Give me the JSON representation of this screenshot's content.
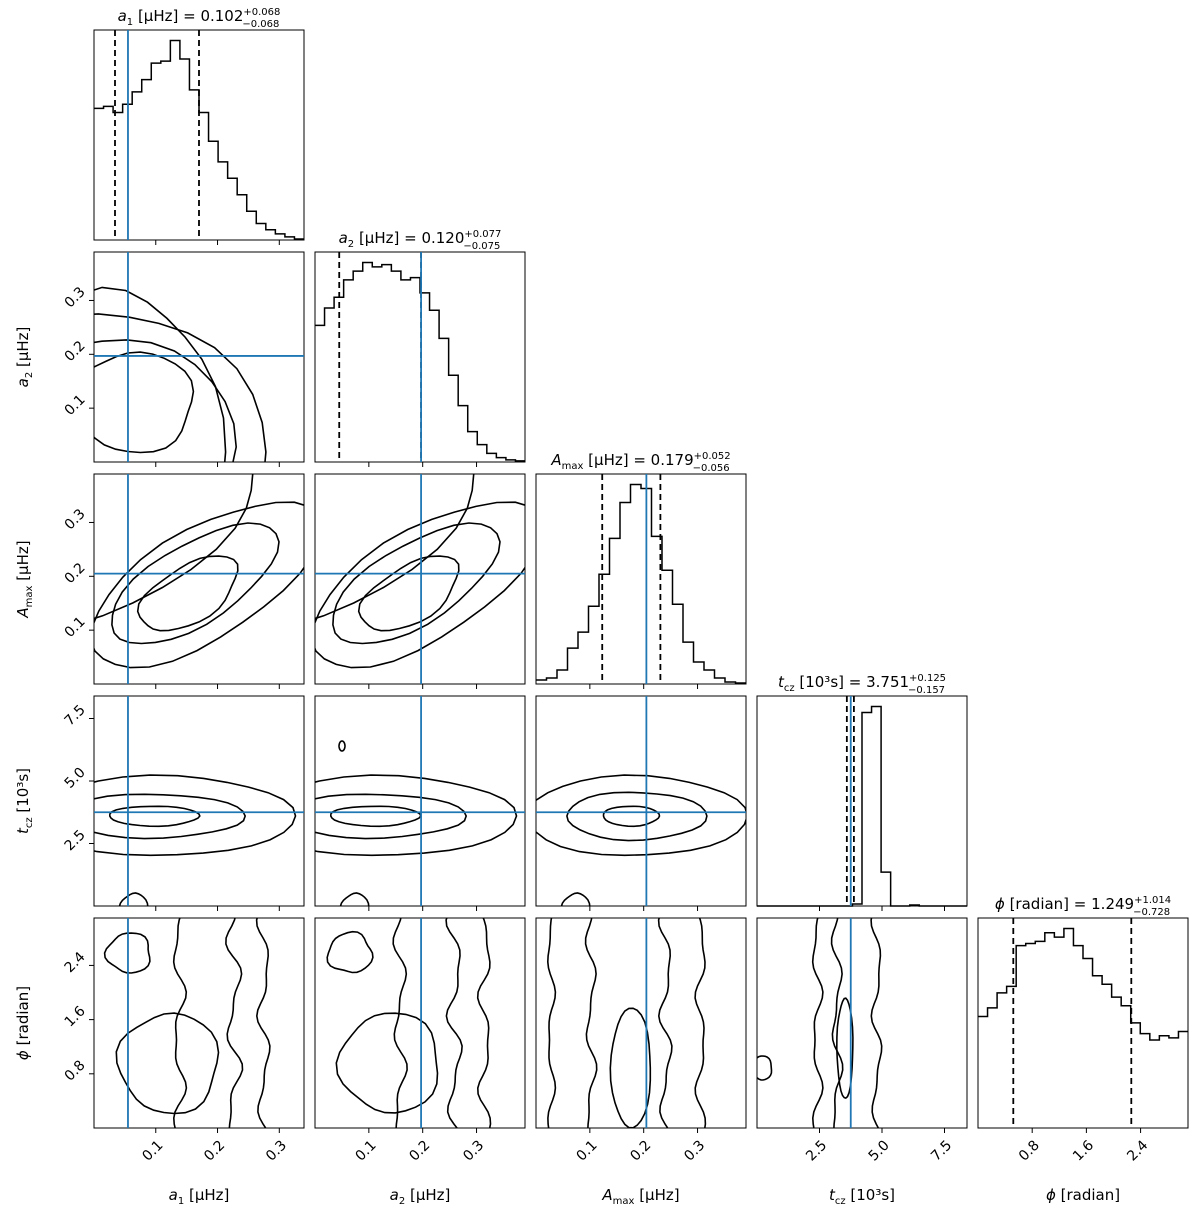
{
  "chart_data": {
    "type": "corner",
    "parameters": [
      {
        "key": "a1",
        "axis_label_main": "a",
        "axis_label_sub": "1",
        "axis_label_unit": " [μHz]",
        "title_value": "0.102",
        "title_plus": "+0.068",
        "title_minus": "−0.068",
        "range": [
          0.0,
          0.34
        ],
        "ticks": [
          0.1,
          0.2,
          0.3
        ],
        "tick_labels": [
          "0.1",
          "0.2",
          "0.3"
        ],
        "truth": 0.055,
        "quantiles": [
          0.034,
          0.102,
          0.17
        ]
      },
      {
        "key": "a2",
        "axis_label_main": "a",
        "axis_label_sub": "2",
        "axis_label_unit": " [μHz]",
        "title_value": "0.120",
        "title_plus": "+0.077",
        "title_minus": "−0.075",
        "range": [
          0.0,
          0.39
        ],
        "ticks": [
          0.1,
          0.2,
          0.3
        ],
        "tick_labels": [
          "0.1",
          "0.2",
          "0.3"
        ],
        "truth": 0.197,
        "quantiles": [
          0.045,
          0.12,
          0.197
        ]
      },
      {
        "key": "Amax",
        "axis_label_main": "A",
        "axis_label_sub": "max",
        "axis_label_unit": " [μHz]",
        "title_value": "0.179",
        "title_plus": "+0.052",
        "title_minus": "−0.056",
        "range": [
          0.0,
          0.39
        ],
        "ticks": [
          0.1,
          0.2,
          0.3
        ],
        "tick_labels": [
          "0.1",
          "0.2",
          "0.3"
        ],
        "truth": 0.205,
        "quantiles": [
          0.123,
          0.179,
          0.231
        ]
      },
      {
        "key": "tcz",
        "axis_label_main": "t",
        "axis_label_sub": "cz",
        "axis_label_unit": " [10³s]",
        "title_value": "3.751",
        "title_plus": "+0.125",
        "title_minus": "−0.157",
        "range": [
          0.0,
          8.4
        ],
        "ticks": [
          2.5,
          5.0,
          7.5
        ],
        "tick_labels": [
          "2.5",
          "5.0",
          "7.5"
        ],
        "truth": 3.75,
        "quantiles": [
          3.594,
          3.751,
          3.876
        ]
      },
      {
        "key": "phi",
        "axis_label_main": "ϕ",
        "axis_label_sub": "",
        "axis_label_unit": " [radian]",
        "title_value": "1.249",
        "title_plus": "+1.014",
        "title_minus": "−0.728",
        "range": [
          0.0,
          3.1
        ],
        "ticks": [
          0.8,
          1.6,
          2.4
        ],
        "tick_labels": [
          "0.8",
          "1.6",
          "2.4"
        ],
        "truth": null,
        "quantiles": [
          0.521,
          1.249,
          2.263
        ]
      }
    ],
    "histograms": {
      "a1": [
        0.64,
        0.65,
        0.62,
        0.66,
        0.72,
        0.78,
        0.86,
        0.87,
        0.97,
        0.88,
        0.73,
        0.62,
        0.48,
        0.38,
        0.3,
        0.22,
        0.14,
        0.08,
        0.05,
        0.03,
        0.015,
        0.005
      ],
      "a2": [
        0.63,
        0.71,
        0.76,
        0.84,
        0.88,
        0.92,
        0.9,
        0.91,
        0.88,
        0.84,
        0.85,
        0.78,
        0.7,
        0.57,
        0.4,
        0.26,
        0.14,
        0.08,
        0.04,
        0.02,
        0.01,
        0.005
      ],
      "Amax": [
        0.02,
        0.03,
        0.07,
        0.18,
        0.26,
        0.39,
        0.55,
        0.73,
        0.91,
        1.0,
        0.98,
        0.74,
        0.57,
        0.4,
        0.21,
        0.11,
        0.07,
        0.03,
        0.01,
        0.005
      ],
      "tcz": [
        0,
        0,
        0,
        0,
        0,
        0,
        0,
        0,
        0,
        0,
        0.01,
        0.97,
        1.0,
        0.17,
        0,
        0,
        0.005,
        0,
        0,
        0,
        0,
        0
      ],
      "phi": [
        0.52,
        0.56,
        0.63,
        0.66,
        0.85,
        0.86,
        0.87,
        0.91,
        0.89,
        0.93,
        0.85,
        0.79,
        0.71,
        0.67,
        0.61,
        0.57,
        0.49,
        0.44,
        0.41,
        0.43,
        0.42,
        0.45
      ]
    },
    "contour_lines": "black",
    "truth_lines": "#1f77b4",
    "colors": {
      "hist": "#000000",
      "truth": "#1f77b4",
      "contour": "#000000"
    }
  }
}
